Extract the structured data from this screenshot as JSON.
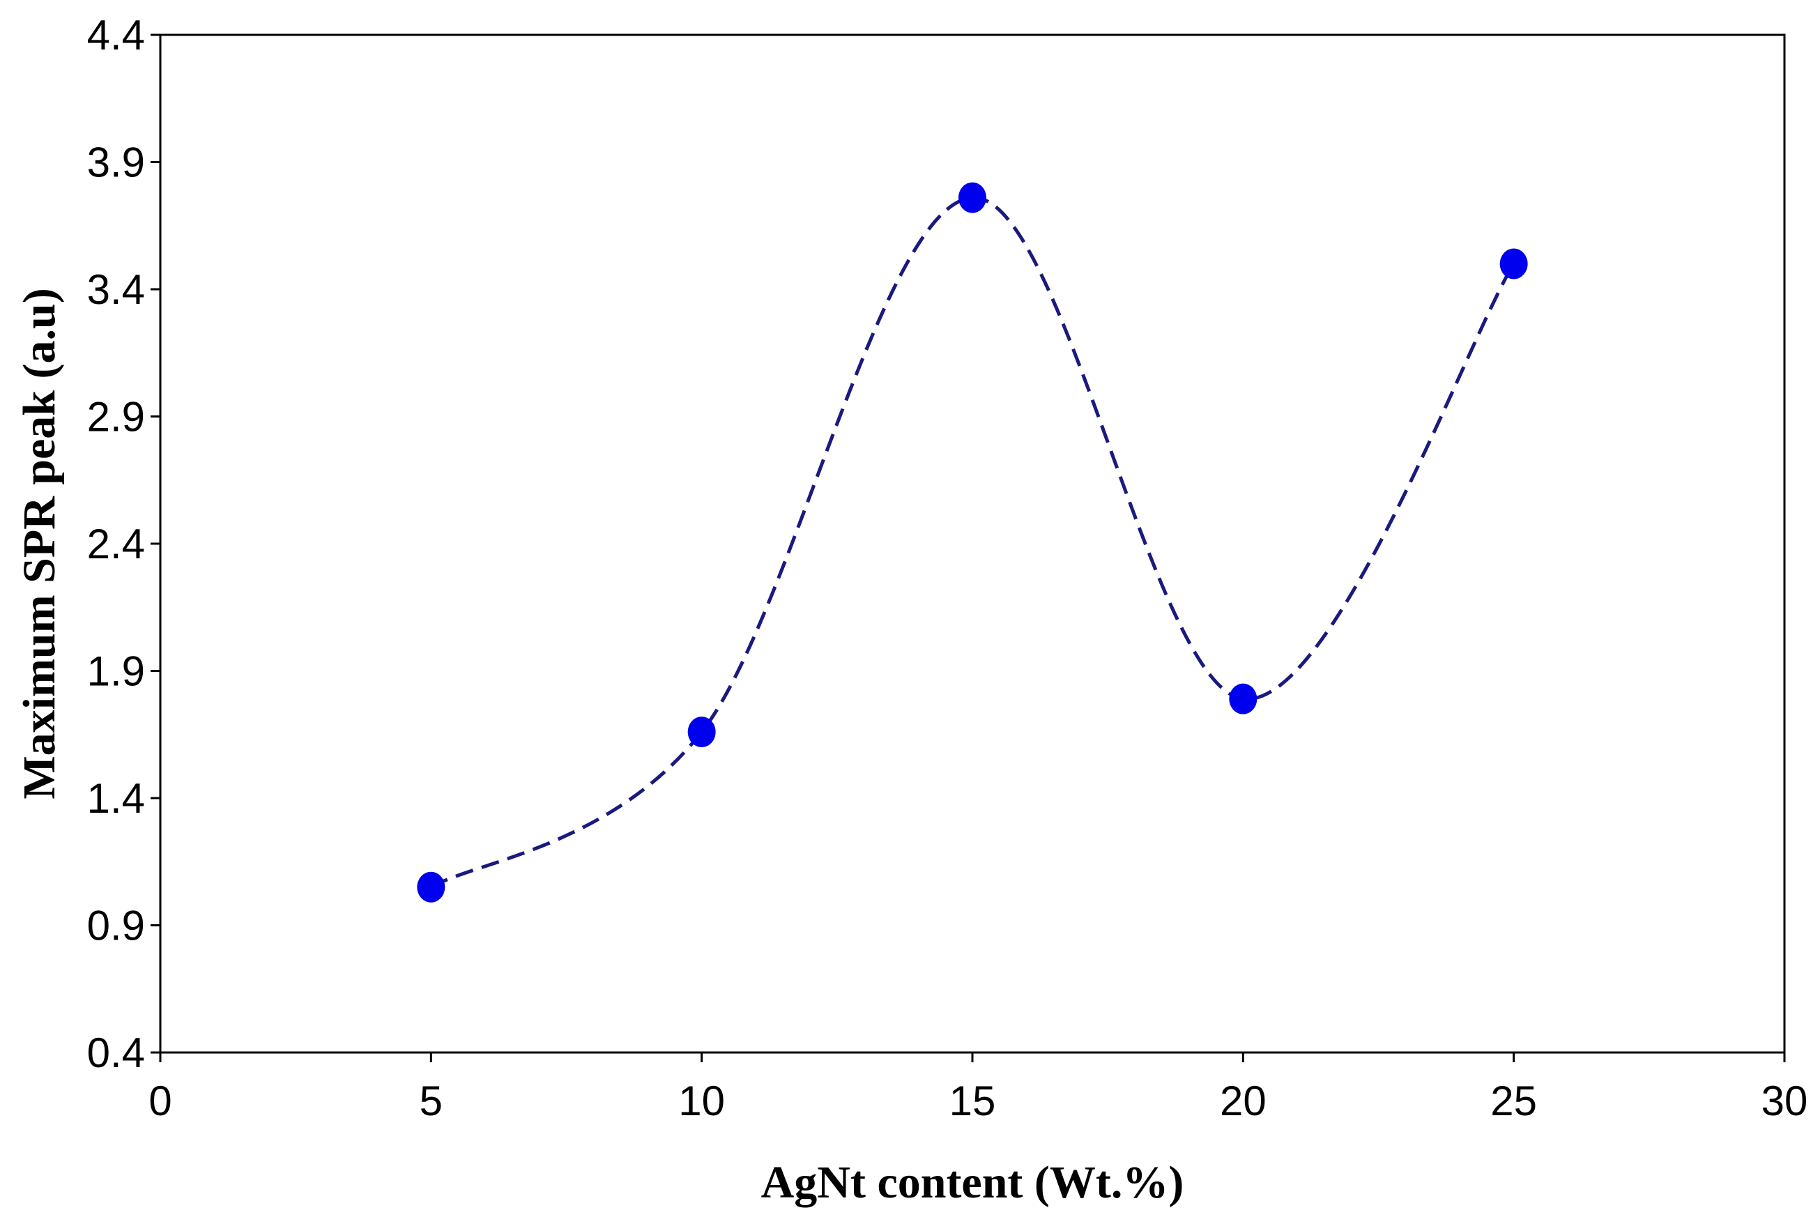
{
  "chart_data": {
    "type": "line",
    "title": "",
    "xlabel": "AgNt content (Wt.%)",
    "ylabel": "Maximum SPR peak (a.u)",
    "xlim": [
      0,
      30
    ],
    "ylim": [
      0.4,
      4.4
    ],
    "x_ticks": [
      0,
      5,
      10,
      15,
      20,
      25,
      30
    ],
    "x_tick_labels": [
      "0",
      "5",
      "10",
      "15",
      "20",
      "25",
      "30"
    ],
    "y_ticks": [
      0.4,
      0.9,
      1.4,
      1.9,
      2.4,
      2.9,
      3.4,
      3.9,
      4.4
    ],
    "y_tick_labels": [
      "0.4",
      "0.9",
      "1.4",
      "1.9",
      "2.4",
      "2.9",
      "3.4",
      "3.9",
      "4.4"
    ],
    "grid": false,
    "legend": "none",
    "series": [
      {
        "name": "Maximum SPR peak",
        "x": [
          5,
          10,
          15,
          20,
          25
        ],
        "y": [
          1.05,
          1.66,
          3.76,
          1.79,
          3.5
        ],
        "line_style": "dashed smooth",
        "line_color": "#1a1a7e",
        "marker": "circle",
        "marker_color": "#0000ee"
      }
    ]
  }
}
